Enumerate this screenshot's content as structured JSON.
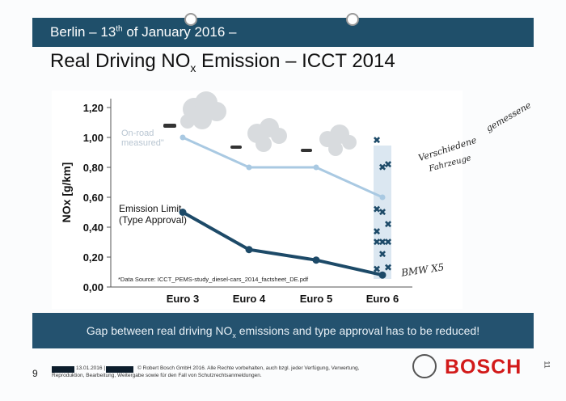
{
  "header": {
    "prefix": "Berlin – 13",
    "sup": "th",
    "suffix": " of January 2016 –"
  },
  "title": {
    "main": "Real Driving NO",
    "sub": "x",
    "rest": " Emission – ICCT 2014"
  },
  "chart_data": {
    "type": "line",
    "categories": [
      "Euro 3",
      "Euro 4",
      "Euro 5",
      "Euro 6"
    ],
    "ylabel": "NOx [g/km]",
    "ylim": [
      0,
      1.2
    ],
    "yticks": [
      "1,20",
      "1,00",
      "0,80",
      "0,60",
      "0,40",
      "0,20",
      "0,00"
    ],
    "series": [
      {
        "name": "On-road measured",
        "values": [
          1.0,
          0.8,
          0.8,
          0.6
        ],
        "color": "#a9c9e2"
      },
      {
        "name": "Emission Limit (Type Approval)",
        "values": [
          0.5,
          0.25,
          0.18,
          0.08
        ],
        "color": "#1d4a68"
      }
    ],
    "euro6_scatter": [
      0.98,
      0.8,
      0.82,
      0.52,
      0.5,
      0.42,
      0.37,
      0.3,
      0.3,
      0.3,
      0.22,
      0.13,
      0.12
    ],
    "annotations": {
      "onroad_line1": "On-road",
      "onroad_line2": "measured\"",
      "limit_line1": "Emission Limit",
      "limit_line2": "(Type Approval)",
      "source": "*Data Source: ICCT_PEMS-study_diesel-cars_2014_factsheet_DE.pdf"
    }
  },
  "footer": {
    "text_a": "Gap between real driving NO",
    "text_sub": "x",
    "text_b": " emissions and type approval has to be reduced!"
  },
  "page_number": "9",
  "copyright": {
    "date": "13.01.2016 |",
    "line1": "© Robert Bosch GmbH 2016. Alle Rechte vorbehalten, auch bzgl. jeder Verfügung, Verwertung,",
    "line2": "Reproduktion, Bearbeitung, Weitergabe sowie für den Fall von Schutzrechtsanmeldungen."
  },
  "brand": "BOSCH",
  "side_number": "11",
  "handwriting": {
    "note1": "Verschiedene",
    "note2": "gemessene",
    "note3": "Fahrzeuge",
    "note4": "BMW X5"
  }
}
